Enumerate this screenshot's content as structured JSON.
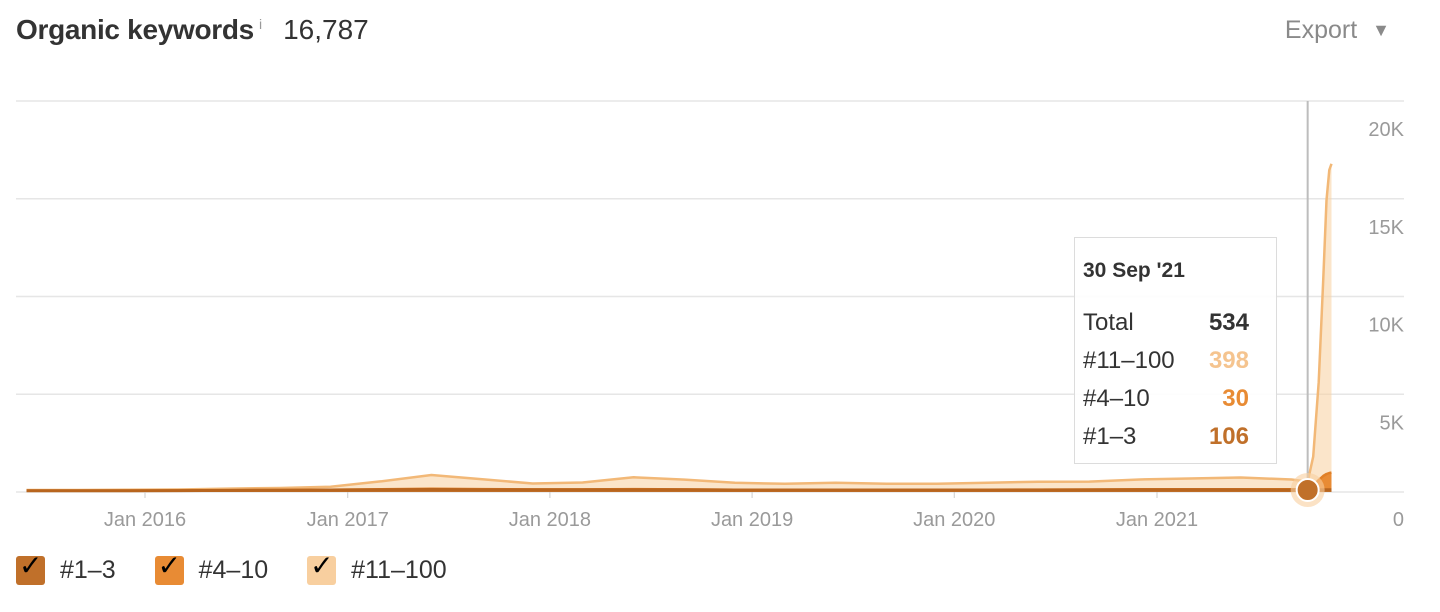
{
  "header": {
    "title": "Organic keywords",
    "info_mark": "i",
    "total": "16,787",
    "export_label": "Export",
    "export_caret": "▼"
  },
  "colors": {
    "top3": "#c0702a",
    "top4_10": "#e88b34",
    "top11_100": "#f8cf9f",
    "grid": "#e6e6e6",
    "axis_text": "#9a9a9a",
    "crosshair": "#bdbdbd"
  },
  "tooltip": {
    "date": "30 Sep '21",
    "rows": [
      {
        "label": "Total",
        "value": "534",
        "color": "#333333"
      },
      {
        "label": "#11–100",
        "value": "398",
        "color": "#f5c48f"
      },
      {
        "label": "#4–10",
        "value": "30",
        "color": "#e88b34"
      },
      {
        "label": "#1–3",
        "value": "106",
        "color": "#c0702a"
      }
    ]
  },
  "legend": [
    {
      "label": "#1–3",
      "check": "✓",
      "color": "#c0702a"
    },
    {
      "label": "#4–10",
      "check": "✓",
      "color": "#e88b34"
    },
    {
      "label": "#11–100",
      "check": "✓",
      "color": "#f8cf9f"
    }
  ],
  "chart_data": {
    "type": "area",
    "stacked": true,
    "ylim": [
      0,
      20000
    ],
    "y_ticks": [
      {
        "value": 0,
        "label": "0"
      },
      {
        "value": 5000,
        "label": "5K"
      },
      {
        "value": 10000,
        "label": "10K"
      },
      {
        "value": 15000,
        "label": "15K"
      },
      {
        "value": 20000,
        "label": "20K"
      }
    ],
    "x_ticks": [
      {
        "date": "2016-01-01",
        "label": "Jan 2016"
      },
      {
        "date": "2017-01-01",
        "label": "Jan 2017"
      },
      {
        "date": "2018-01-01",
        "label": "Jan 2018"
      },
      {
        "date": "2019-01-01",
        "label": "Jan 2019"
      },
      {
        "date": "2020-01-01",
        "label": "Jan 2020"
      },
      {
        "date": "2021-01-01",
        "label": "Jan 2021"
      }
    ],
    "highlight_date": "2021-09-30",
    "x": [
      "2015-06-01",
      "2015-09-01",
      "2015-12-01",
      "2016-03-01",
      "2016-06-01",
      "2016-09-01",
      "2016-12-01",
      "2017-03-01",
      "2017-06-01",
      "2017-09-01",
      "2017-12-01",
      "2018-03-01",
      "2018-06-01",
      "2018-09-01",
      "2018-12-01",
      "2019-03-01",
      "2019-06-01",
      "2019-09-01",
      "2019-12-01",
      "2020-03-01",
      "2020-06-01",
      "2020-09-01",
      "2020-12-01",
      "2021-03-01",
      "2021-06-01",
      "2021-09-01",
      "2021-09-30",
      "2021-10-10",
      "2021-10-20",
      "2021-10-28",
      "2021-11-03",
      "2021-11-08",
      "2021-11-12"
    ],
    "series": [
      {
        "name": "#1–3",
        "values": [
          60,
          60,
          65,
          70,
          80,
          90,
          100,
          110,
          130,
          120,
          110,
          110,
          120,
          110,
          100,
          100,
          100,
          100,
          100,
          100,
          100,
          105,
          110,
          110,
          110,
          108,
          106,
          110,
          115,
          120,
          120,
          120,
          120
        ]
      },
      {
        "name": "#4–10",
        "values": [
          10,
          10,
          10,
          10,
          12,
          15,
          20,
          30,
          40,
          30,
          25,
          25,
          30,
          25,
          20,
          20,
          20,
          20,
          20,
          20,
          25,
          25,
          30,
          30,
          30,
          30,
          30,
          200,
          500,
          700,
          800,
          850,
          870
        ]
      },
      {
        "name": "#11–100",
        "values": [
          30,
          30,
          35,
          50,
          80,
          100,
          150,
          400,
          700,
          500,
          300,
          350,
          600,
          500,
          350,
          300,
          350,
          300,
          300,
          350,
          400,
          400,
          500,
          550,
          600,
          500,
          398,
          1500,
          5000,
          10000,
          14000,
          15500,
          15797
        ]
      }
    ]
  }
}
